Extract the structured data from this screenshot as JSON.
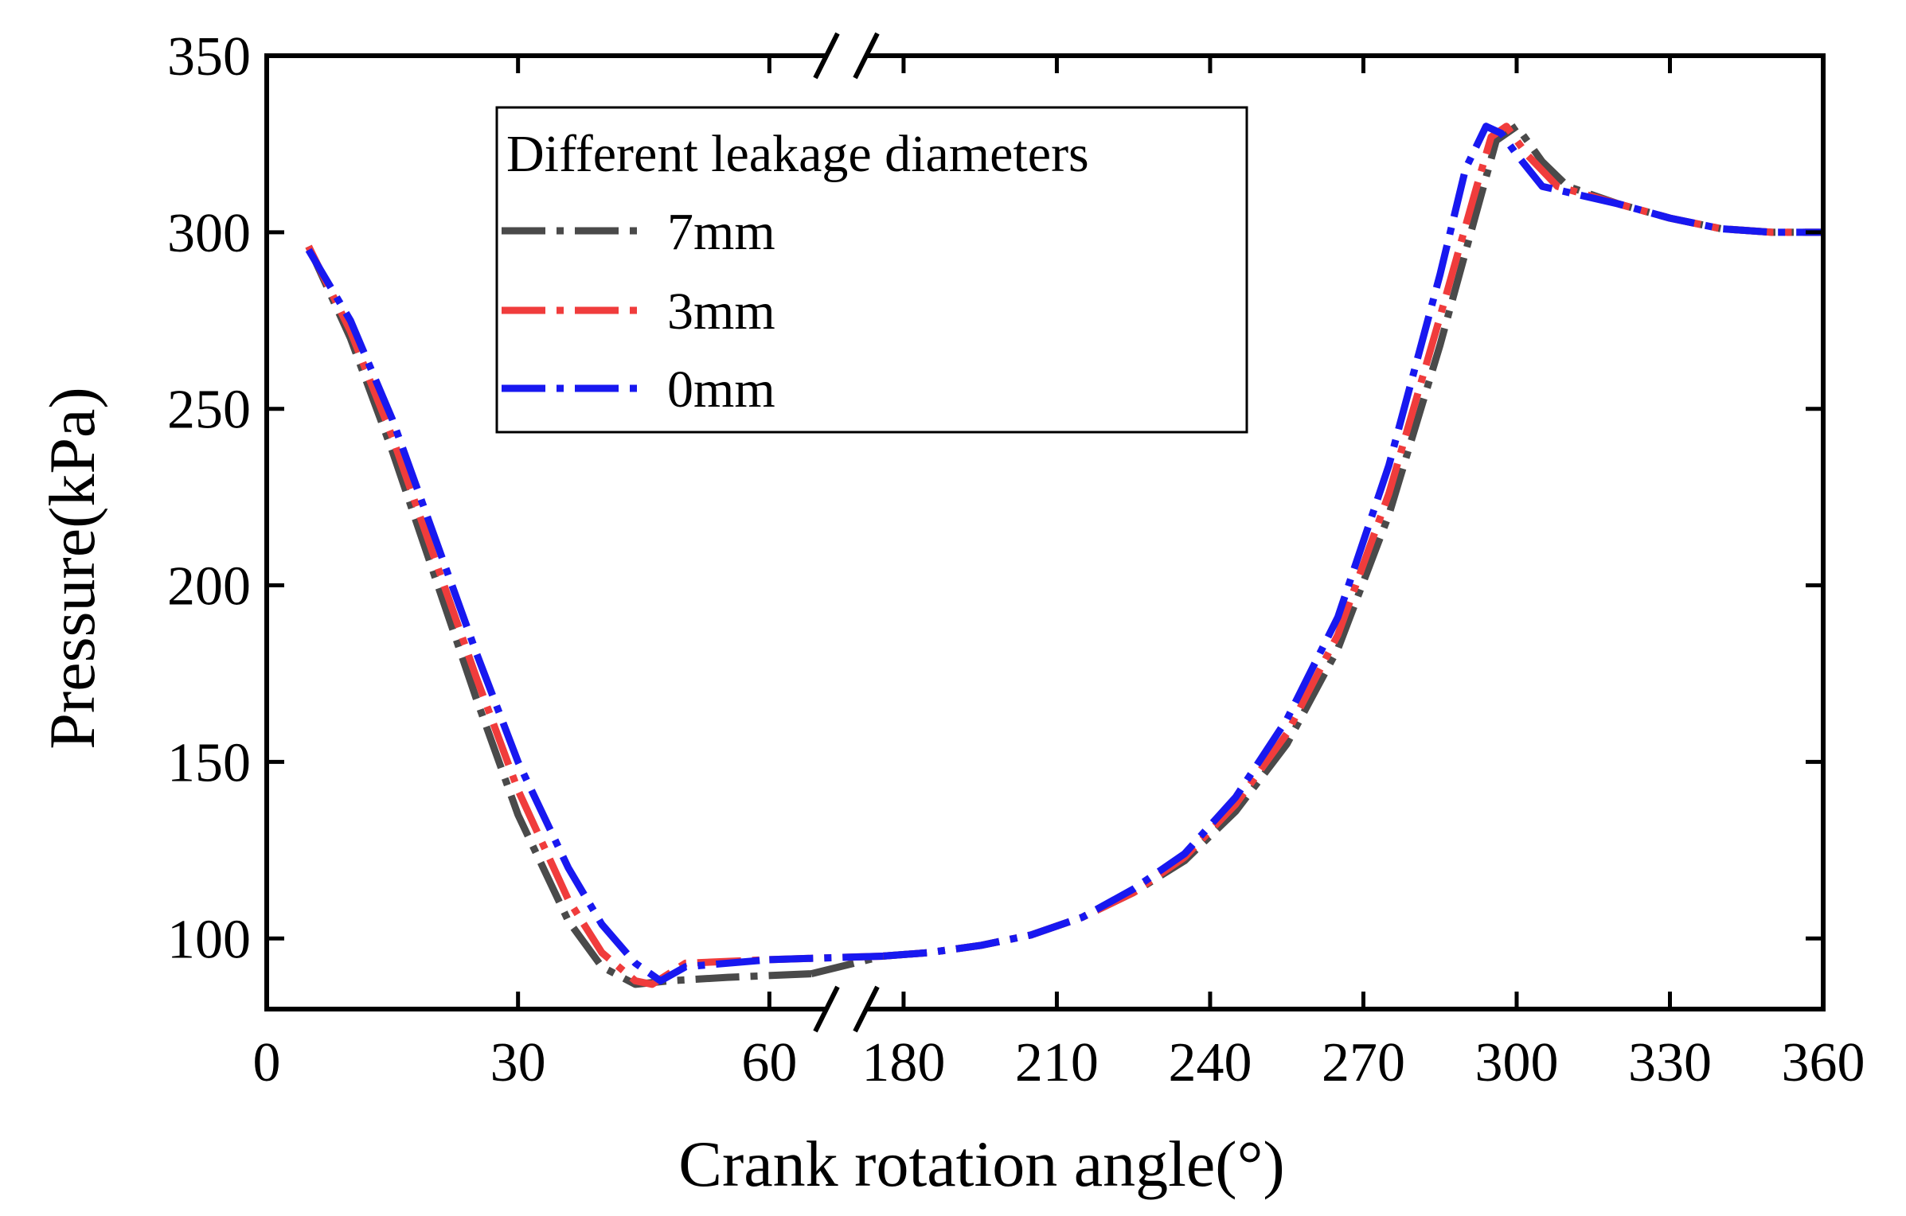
{
  "chart_data": {
    "type": "line",
    "title": "",
    "xlabel": "Crank rotation angle(°)",
    "ylabel": "Pressure(kPa)",
    "ylim": [
      80,
      350
    ],
    "x_axis_break": {
      "from": 67,
      "to": 173
    },
    "x_segments": [
      {
        "range": [
          0,
          67
        ],
        "ticks": [
          0,
          30,
          60
        ]
      },
      {
        "range": [
          173,
          360
        ],
        "ticks": [
          180,
          210,
          240,
          270,
          300,
          330,
          360
        ]
      }
    ],
    "y_ticks": [
      100,
      150,
      200,
      250,
      300,
      350
    ],
    "legend": {
      "title": "Different leakage diameters",
      "position": "top-left"
    },
    "series": [
      {
        "name": "7mm",
        "color": "#4a4a4a",
        "x": [
          5,
          10,
          15,
          20,
          25,
          30,
          36,
          40,
          44,
          48,
          55,
          65,
          176,
          185,
          195,
          205,
          215,
          225,
          235,
          245,
          255,
          265,
          275,
          285,
          292,
          296,
          300,
          305,
          310,
          320,
          330,
          340,
          350,
          360
        ],
        "y": [
          296,
          270,
          238,
          203,
          168,
          135,
          105,
          92,
          87,
          88,
          89,
          90,
          95,
          96,
          98,
          101,
          106,
          113,
          122,
          136,
          155,
          182,
          220,
          268,
          305,
          326,
          330,
          320,
          313,
          308,
          304,
          301,
          300,
          300
        ]
      },
      {
        "name": "3mm",
        "color": "#f03c3c",
        "x": [
          5,
          10,
          15,
          20,
          25,
          30,
          36,
          40,
          44,
          46,
          50,
          60,
          176,
          185,
          195,
          205,
          215,
          225,
          235,
          245,
          255,
          265,
          275,
          285,
          292,
          295,
          298,
          302,
          308,
          320,
          330,
          340,
          350,
          360
        ],
        "y": [
          296,
          272,
          242,
          208,
          174,
          142,
          111,
          96,
          88,
          87,
          93,
          94,
          95,
          96,
          98,
          101,
          106,
          113,
          123,
          138,
          158,
          186,
          226,
          276,
          312,
          327,
          330,
          322,
          313,
          308,
          304,
          301,
          300,
          300
        ]
      },
      {
        "name": "0mm",
        "color": "#1818f0",
        "x": [
          5,
          10,
          15,
          20,
          25,
          30,
          36,
          40,
          44,
          47,
          50,
          60,
          176,
          185,
          195,
          205,
          215,
          225,
          235,
          245,
          255,
          265,
          275,
          285,
          290,
          294,
          297,
          300,
          305,
          320,
          330,
          340,
          350,
          360
        ],
        "y": [
          295,
          275,
          247,
          214,
          181,
          150,
          120,
          104,
          93,
          88,
          92,
          94,
          95,
          96,
          98,
          101,
          106,
          114,
          124,
          140,
          162,
          191,
          234,
          288,
          318,
          330,
          328,
          322,
          313,
          308,
          304,
          301,
          300,
          300
        ]
      }
    ]
  }
}
